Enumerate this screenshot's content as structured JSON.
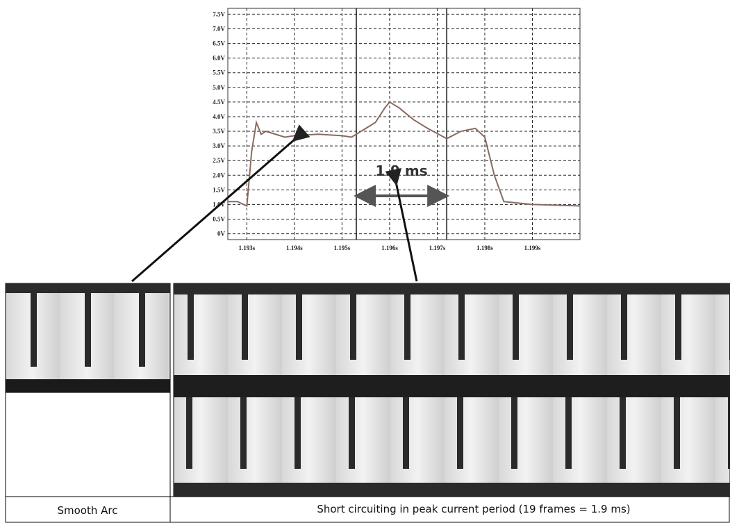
{
  "chart_data": {
    "type": "line",
    "x": [
      1.1926,
      1.1928,
      1.193,
      1.1931,
      1.1932,
      1.1933,
      1.1934,
      1.1936,
      1.1938,
      1.194,
      1.1945,
      1.195,
      1.1952,
      1.1954,
      1.1957,
      1.1959,
      1.196,
      1.1962,
      1.1965,
      1.1968,
      1.1972,
      1.1975,
      1.1978,
      1.198,
      1.1982,
      1.1984,
      1.199,
      1.2
    ],
    "values": [
      1.1,
      1.1,
      0.95,
      2.8,
      3.8,
      3.4,
      3.5,
      3.4,
      3.3,
      3.35,
      3.4,
      3.35,
      3.3,
      3.5,
      3.8,
      4.3,
      4.5,
      4.3,
      3.9,
      3.6,
      3.25,
      3.5,
      3.6,
      3.3,
      2.0,
      1.1,
      1.0,
      0.95
    ],
    "color": "#8a6a60",
    "xlim": [
      1.1926,
      1.2
    ],
    "ylim": [
      -0.2,
      7.7
    ],
    "xticks": [
      {
        "value": 1.193,
        "label": "1.193s"
      },
      {
        "value": 1.194,
        "label": "1.194s"
      },
      {
        "value": 1.195,
        "label": "1.195s"
      },
      {
        "value": 1.196,
        "label": "1.196s"
      },
      {
        "value": 1.197,
        "label": "1.197s"
      },
      {
        "value": 1.198,
        "label": "1.198s"
      },
      {
        "value": 1.199,
        "label": "1.199s"
      }
    ],
    "yticks": [
      {
        "value": 0,
        "label": "0V"
      },
      {
        "value": 0.5,
        "label": "0.5V"
      },
      {
        "value": 1.0,
        "label": "1.0V"
      },
      {
        "value": 1.5,
        "label": "1.5V"
      },
      {
        "value": 2.0,
        "label": "2.0V"
      },
      {
        "value": 2.5,
        "label": "2.5V"
      },
      {
        "value": 3.0,
        "label": "3.0V"
      },
      {
        "value": 3.5,
        "label": "3.5V"
      },
      {
        "value": 4.0,
        "label": "4.0V"
      },
      {
        "value": 4.5,
        "label": "4.5V"
      },
      {
        "value": 5.0,
        "label": "5.0V"
      },
      {
        "value": 5.5,
        "label": "5.5V"
      },
      {
        "value": 6.0,
        "label": "6.0V"
      },
      {
        "value": 6.5,
        "label": "6.5V"
      },
      {
        "value": 7.0,
        "label": "7.0V"
      },
      {
        "value": 7.5,
        "label": "7.5V"
      }
    ],
    "vlines": [
      1.1953,
      1.1972
    ],
    "grid": true,
    "annotation": "1.9 ms"
  },
  "captions": {
    "left": "Smooth Arc",
    "right": "Short circuiting in peak current period (19 frames = 1.9 ms)"
  }
}
